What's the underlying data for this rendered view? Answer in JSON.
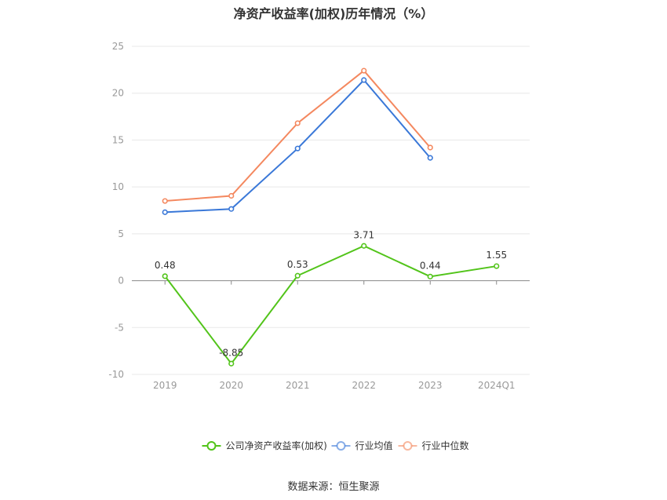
{
  "title": "净资产收益率(加权)历年情况（%）",
  "source": "数据来源：恒生聚源",
  "chart_data": {
    "type": "line",
    "categories": [
      "2019",
      "2020",
      "2021",
      "2022",
      "2023",
      "2024Q1"
    ],
    "ylim": [
      -10,
      25
    ],
    "yticks": [
      -10,
      -5,
      0,
      5,
      10,
      15,
      20,
      25
    ],
    "grid": true,
    "legend": "bottom-center",
    "series": [
      {
        "name": "公司净资产收益率(加权)",
        "color": "#52c41a",
        "values": [
          0.48,
          -8.85,
          0.53,
          3.71,
          0.44,
          1.55
        ],
        "labels": true
      },
      {
        "name": "行业均值",
        "color": "#3a78d8",
        "values": [
          7.3,
          7.65,
          14.1,
          21.4,
          13.1,
          null
        ],
        "labels": false
      },
      {
        "name": "行业中位数",
        "color": "#f4885f",
        "values": [
          8.5,
          9.05,
          16.8,
          22.4,
          14.2,
          null
        ],
        "labels": false
      }
    ]
  }
}
